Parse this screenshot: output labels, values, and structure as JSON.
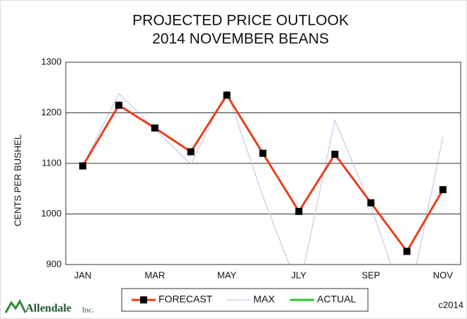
{
  "chart_data": {
    "type": "line",
    "title": "PROJECTED PRICE OUTLOOK",
    "subtitle": "2014 NOVEMBER BEANS",
    "y_label": "CENTS PER BUSHEL",
    "categories": [
      "JAN",
      null,
      "MAR",
      null,
      "MAY",
      null,
      "JLY",
      null,
      "SEP",
      null,
      "NOV"
    ],
    "series": [
      {
        "name": "FORECAST",
        "color": "#e8401c",
        "values": [
          1095,
          1215,
          1170,
          1123,
          1235,
          1120,
          1005,
          1118,
          1022,
          926,
          1048
        ]
      },
      {
        "name": "MAX",
        "color": "#9fb4e0",
        "values": [
          1095,
          1238,
          1168,
          1098,
          1243,
          1035,
          850,
          1185,
          1015,
          810,
          1152
        ]
      },
      {
        "name": "ACTUAL",
        "color": "#22cc22",
        "values": [
          null,
          null,
          null,
          null,
          null,
          null,
          null,
          null,
          null,
          null,
          null
        ]
      }
    ],
    "ylim": [
      900,
      1300
    ],
    "yticks": [
      900,
      1000,
      1100,
      1200,
      1300
    ],
    "grid": true,
    "logo": "Allendale",
    "logo_suffix": "Inc.",
    "copyright": "c2014"
  }
}
